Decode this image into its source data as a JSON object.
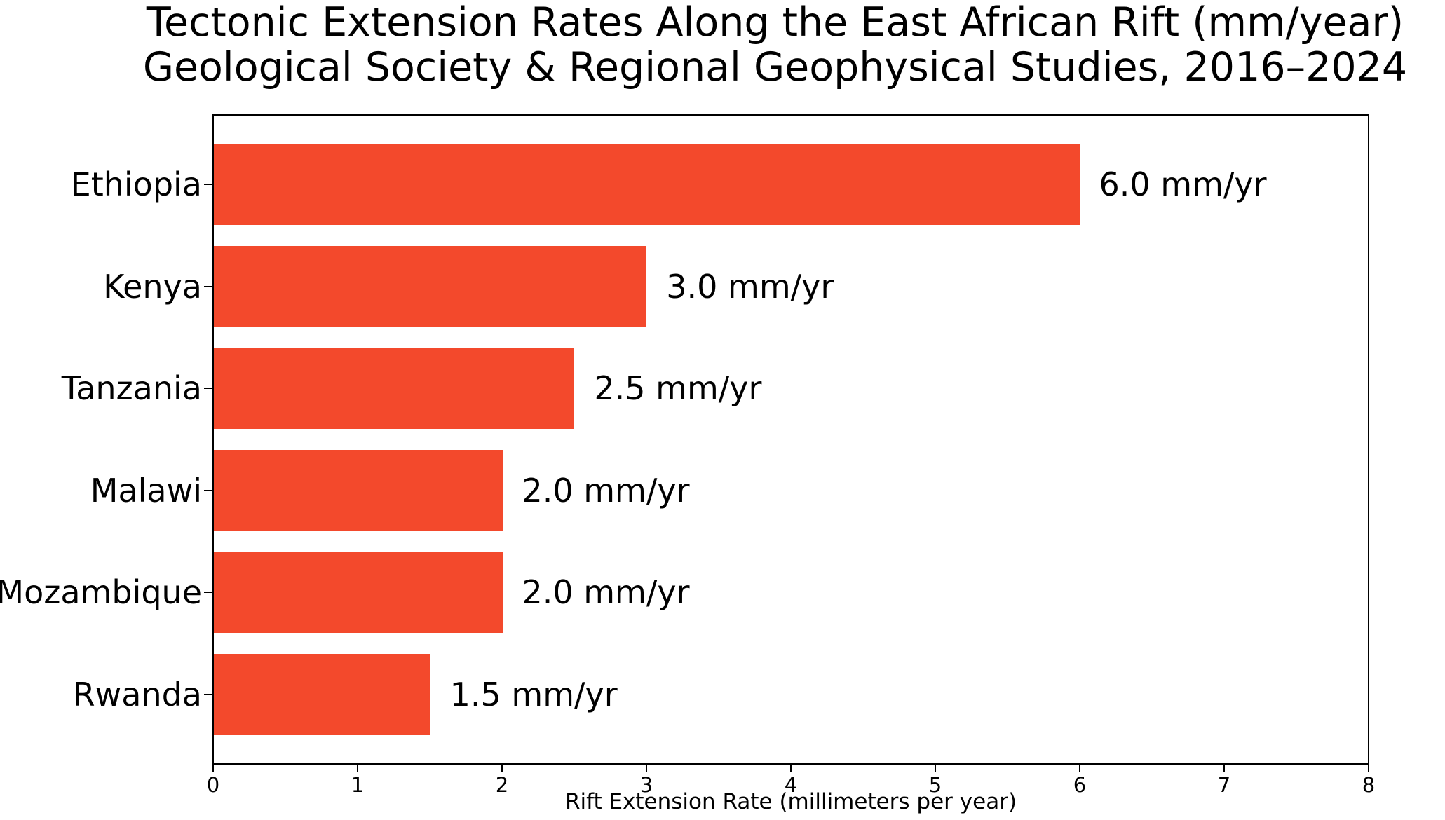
{
  "chart_data": {
    "type": "bar",
    "orientation": "horizontal",
    "title_line1": "Tectonic Extension Rates Along the East African Rift (mm/year)",
    "title_line2": "Geological Society & Regional Geophysical Studies, 2016–2024",
    "categories": [
      "Ethiopia",
      "Kenya",
      "Tanzania",
      "Malawi",
      "Mozambique",
      "Rwanda"
    ],
    "values": [
      6.0,
      3.0,
      2.5,
      2.0,
      2.0,
      1.5
    ],
    "value_labels": [
      "6.0 mm/yr",
      "3.0 mm/yr",
      "2.5 mm/yr",
      "2.0 mm/yr",
      "2.0 mm/yr",
      "1.5 mm/yr"
    ],
    "xlabel": "Rift Extension Rate (millimeters per year)",
    "xlim": [
      0,
      8
    ],
    "xticks": [
      0,
      1,
      2,
      3,
      4,
      5,
      6,
      7,
      8
    ],
    "bar_color": "#F3492C",
    "text_color": "#000000",
    "axis_color": "#000000",
    "background_color": "#FFFFFF",
    "grid": false,
    "legend": null
  }
}
